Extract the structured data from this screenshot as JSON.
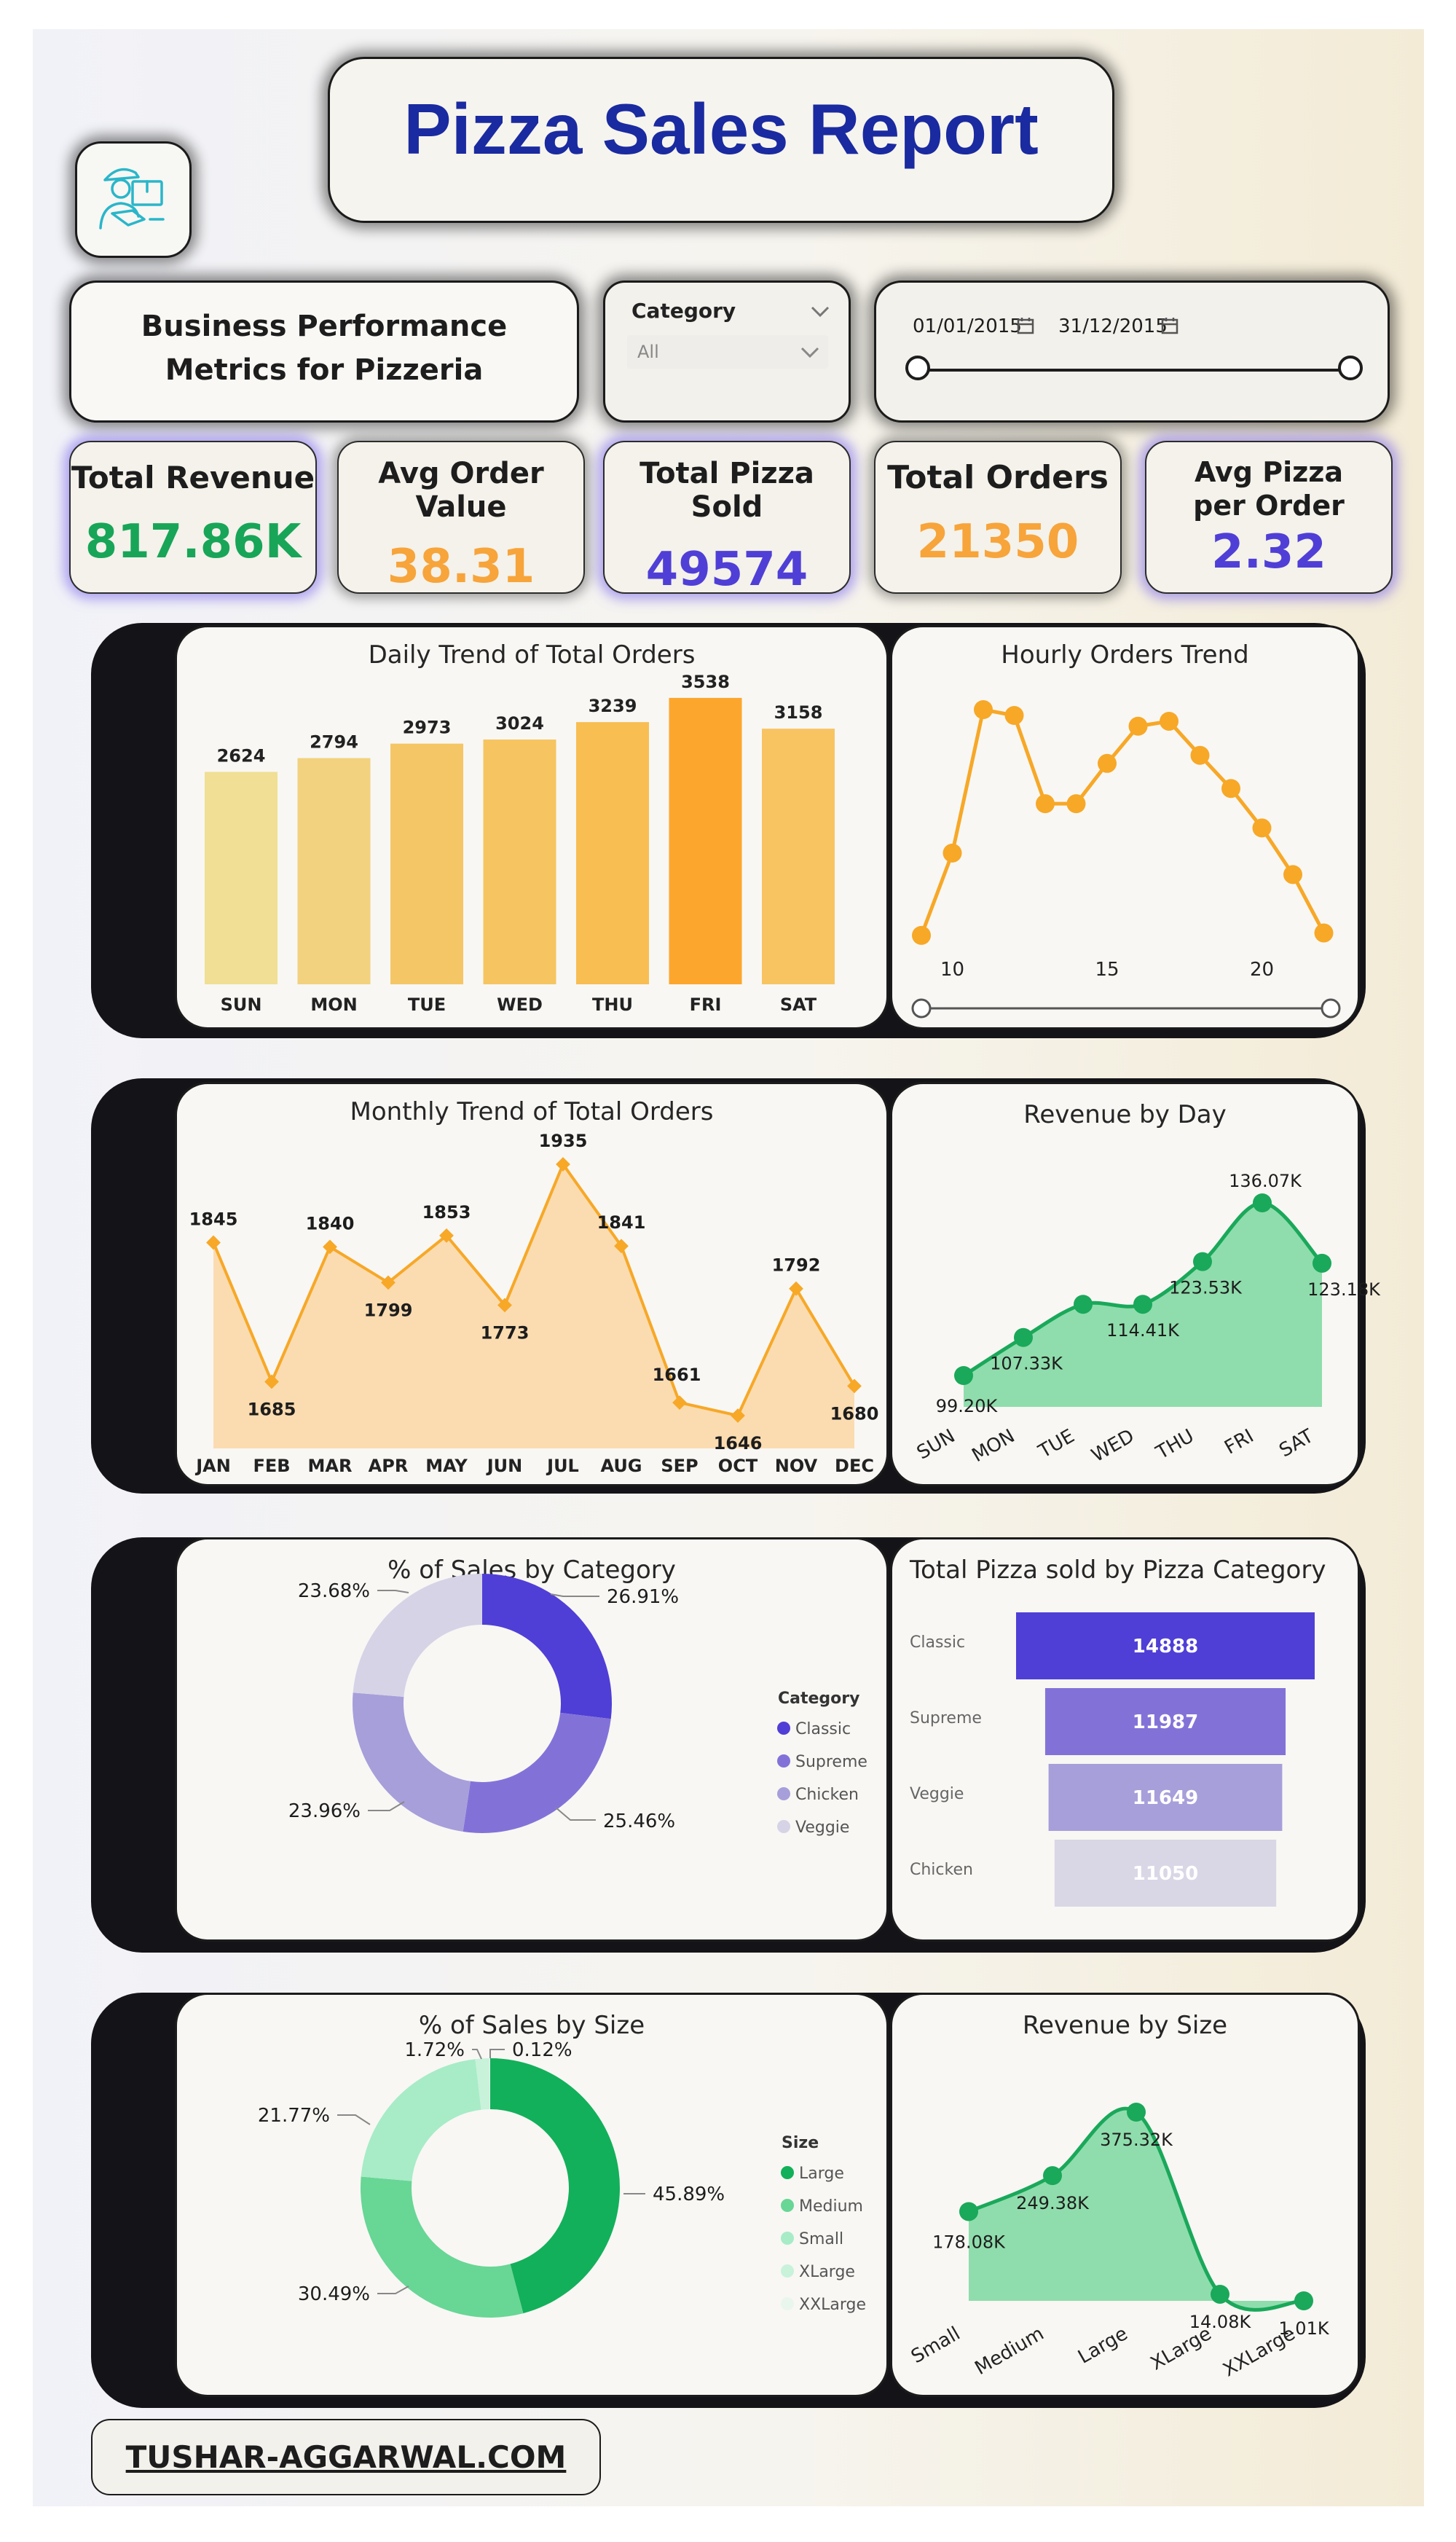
{
  "report": {
    "title": "Pizza Sales Report",
    "subtitle": "Business Performance Metrics for Pizzeria",
    "footer": "TUSHAR-AGGARWAL.COM"
  },
  "filters": {
    "category_label": "Category",
    "category_value": "All",
    "date_start": "01/01/2015",
    "date_end": "31/12/2015"
  },
  "kpis": [
    {
      "label": "Total Revenue",
      "value": "817.86K",
      "color": "#18a558"
    },
    {
      "label": "Avg Order Value",
      "value": "38.31",
      "color": "#f7a43b"
    },
    {
      "label": "Total Pizza Sold",
      "value": "49574",
      "color": "#4f3fd6"
    },
    {
      "label": "Total Orders",
      "value": "21350",
      "color": "#f7a43b"
    },
    {
      "label": "Avg Pizza per Order",
      "value": "2.32",
      "color": "#4f3fd6"
    }
  ],
  "chart_data": [
    {
      "id": "daily",
      "type": "bar",
      "title": "Daily Trend of Total Orders",
      "categories": [
        "SUN",
        "MON",
        "TUE",
        "WED",
        "THU",
        "FRI",
        "SAT"
      ],
      "values": [
        2624,
        2794,
        2973,
        3024,
        3239,
        3538,
        3158
      ],
      "ylim": [
        0,
        3600
      ],
      "colors": [
        "#f0df94",
        "#f2d27e",
        "#f5c666",
        "#f6c561",
        "#f8be52",
        "#fda62e",
        "#f8c462"
      ]
    },
    {
      "id": "hourly",
      "type": "line",
      "title": "Hourly Orders Trend",
      "x": [
        9,
        10,
        11,
        12,
        13,
        14,
        15,
        16,
        17,
        18,
        19,
        20,
        21,
        22,
        23
      ],
      "values": [
        1,
        920,
        2520,
        2455,
        1470,
        1470,
        1920,
        2335,
        2390,
        2010,
        1640,
        1200,
        680,
        28,
        null
      ],
      "x_ticks": [
        10,
        15,
        20
      ],
      "color": "#f7a827"
    },
    {
      "id": "monthly",
      "type": "area",
      "title": "Monthly Trend of Total Orders",
      "categories": [
        "JAN",
        "FEB",
        "MAR",
        "APR",
        "MAY",
        "JUN",
        "JUL",
        "AUG",
        "SEP",
        "OCT",
        "NOV",
        "DEC"
      ],
      "values": [
        1845,
        1685,
        1840,
        1799,
        1853,
        1773,
        1935,
        1841,
        1661,
        1646,
        1792,
        1680
      ],
      "labels": [
        "1845",
        "1685",
        "1840",
        "1799",
        "1853",
        "1773",
        "1935",
        "1841",
        "1661",
        "1646",
        "1792",
        "1680"
      ],
      "color": "#f7a827",
      "fill": "#fbdcb1"
    },
    {
      "id": "revday",
      "type": "area",
      "title": "Revenue by Day",
      "categories": [
        "SUN",
        "MON",
        "TUE",
        "WED",
        "THU",
        "FRI",
        "SAT"
      ],
      "values": [
        99.2,
        107.33,
        114.41,
        114.41,
        123.53,
        136.07,
        123.18
      ],
      "labels": [
        "99.20K",
        "107.33K",
        "",
        "114.41K",
        "123.53K",
        "136.07K",
        "123.18K"
      ],
      "color": "#1aa85a",
      "fill": "#8fddac"
    },
    {
      "id": "catpie",
      "type": "pie",
      "title": "% of Sales by Category",
      "legend_title": "Category",
      "categories": [
        "Classic",
        "Supreme",
        "Chicken",
        "Veggie"
      ],
      "values": [
        26.91,
        25.46,
        23.96,
        23.68
      ],
      "labels": [
        "26.91%",
        "25.46%",
        "23.96%",
        "23.68%"
      ],
      "colors": [
        "#4f3fd6",
        "#8272d8",
        "#a79fda",
        "#d6d3e6"
      ]
    },
    {
      "id": "catfunnel",
      "type": "bar",
      "title": "Total Pizza sold by Pizza Category",
      "categories": [
        "Classic",
        "Supreme",
        "Veggie",
        "Chicken"
      ],
      "values": [
        14888,
        11987,
        11649,
        11050
      ],
      "labels": [
        "14888",
        "11987",
        "11649",
        "11050"
      ],
      "colors": [
        "#4f3fd6",
        "#8272d8",
        "#a79fda",
        "#d9d7e6"
      ]
    },
    {
      "id": "sizepie",
      "type": "pie",
      "title": "% of Sales by Size",
      "legend_title": "Size",
      "categories": [
        "Large",
        "Medium",
        "Small",
        "XLarge",
        "XXLarge"
      ],
      "values": [
        45.89,
        30.49,
        21.77,
        1.72,
        0.12
      ],
      "labels": [
        "45.89%",
        "30.49%",
        "21.77%",
        "1.72%",
        "0.12%"
      ],
      "colors": [
        "#12b05a",
        "#68d695",
        "#a7ecc6",
        "#c8f2da",
        "#e9f6ee"
      ]
    },
    {
      "id": "revsize",
      "type": "area",
      "title": "Revenue by Size",
      "categories": [
        "Small",
        "Medium",
        "Large",
        "XLarge",
        "XXLarge"
      ],
      "values": [
        178.08,
        249.38,
        375.32,
        14.08,
        1.01
      ],
      "labels": [
        "178.08K",
        "249.38K",
        "375.32K",
        "14.08K",
        "1.01K"
      ],
      "color": "#1aa85a",
      "fill": "#8fddac"
    }
  ]
}
